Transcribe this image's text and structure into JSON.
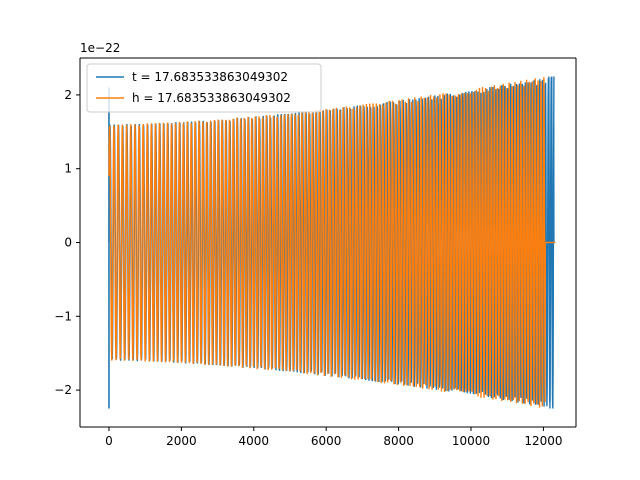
{
  "chart_data": {
    "type": "line",
    "title": "",
    "xlabel": "",
    "ylabel": "",
    "y_offset_label": "1e−22",
    "xlim": [
      -800,
      12900
    ],
    "ylim": [
      -2.5,
      2.5
    ],
    "x_ticks": [
      0,
      2000,
      4000,
      6000,
      8000,
      10000,
      12000
    ],
    "x_tick_labels": [
      "0",
      "2000",
      "4000",
      "6000",
      "8000",
      "10000",
      "12000"
    ],
    "y_ticks": [
      -2,
      -1,
      0,
      1,
      2
    ],
    "y_tick_labels": [
      "−2",
      "−1",
      "0",
      "1",
      "2"
    ],
    "grid": false,
    "legend_position": "upper-left",
    "series": [
      {
        "name": "t = 17.683533863049302",
        "color": "#1f77b4",
        "x_start": 0,
        "x_end": 12290,
        "amplitude_start": 2.25,
        "amplitude_end": 2.25,
        "envelope_upper_start": 1.6,
        "envelope_upper_end": 2.25,
        "envelope_lower_start": -1.6,
        "envelope_lower_end": -2.25,
        "flat_tail_until": 12290
      },
      {
        "name": "h = 17.683533863049302",
        "color": "#ff7f0e",
        "x_start": 0,
        "x_end": 12050,
        "envelope_upper_start": 1.6,
        "envelope_upper_end": 2.25,
        "envelope_lower_start": -1.6,
        "envelope_lower_end": -2.25,
        "flat_tail_until": 12330
      }
    ]
  }
}
